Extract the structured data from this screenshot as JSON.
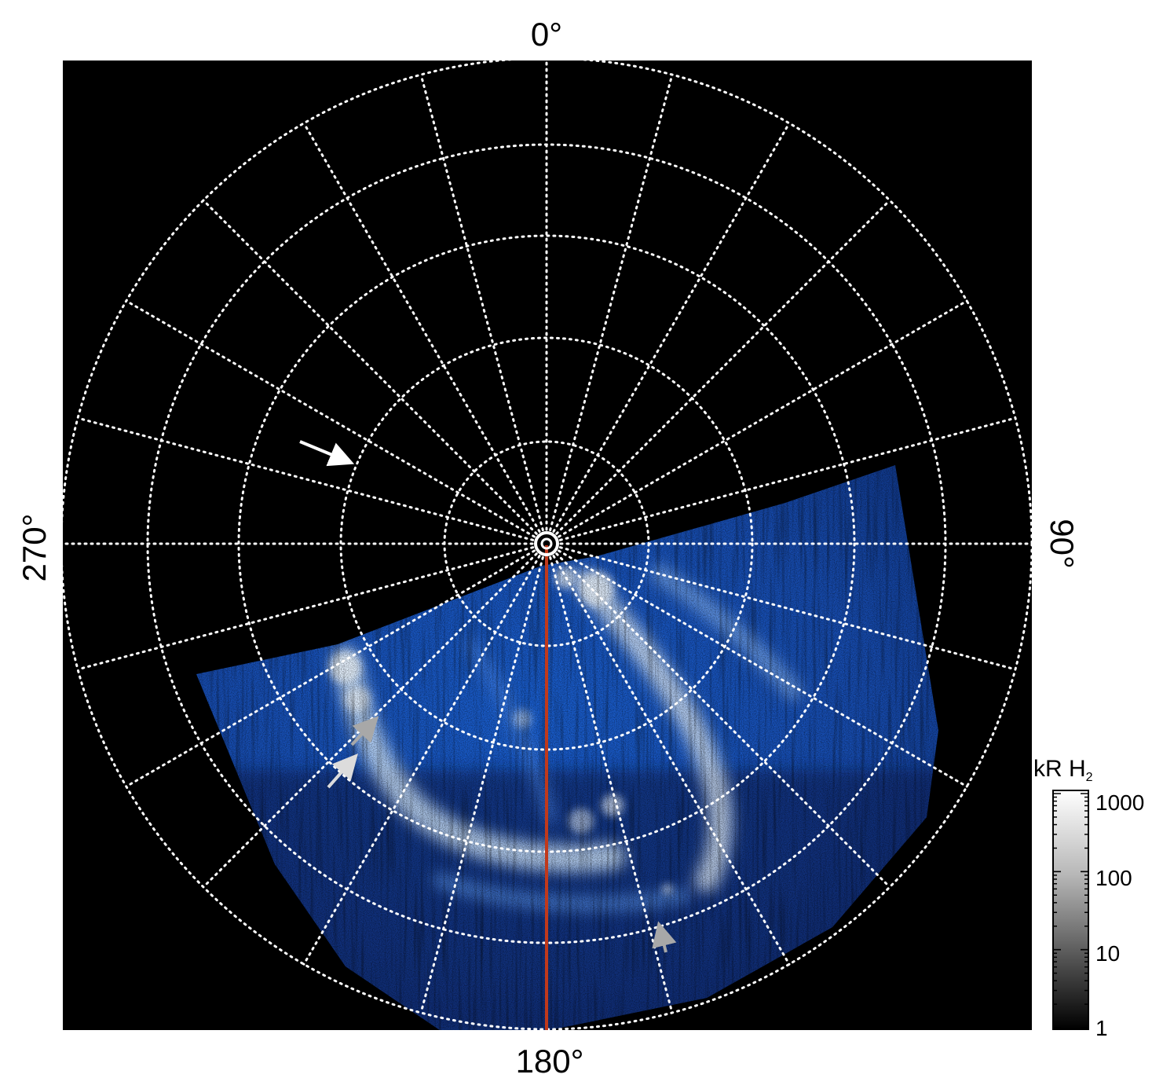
{
  "compass_labels": {
    "top": "0°",
    "right": "90°",
    "bottom": "180°",
    "left": "270°"
  },
  "colorbar": {
    "unit": "kR H",
    "unit_subscript": "2",
    "scale": "log",
    "ticks": [
      "1000",
      "100",
      "10",
      "1"
    ]
  },
  "colors": {
    "background": "#000000",
    "grid": "#ffffff",
    "meridian_line": "#c0391b",
    "aurora_dark": "#0a2a80",
    "aurora_mid": "#1e6ee6",
    "aurora_bright": "#ffffff",
    "arrow_white": "#ffffff",
    "arrow_gray": "#a8a8a8"
  },
  "grid": {
    "style": "dotted",
    "meridian_spacing_deg": 15,
    "latitude_rings": 5
  },
  "annotations": [
    {
      "name": "white-arrow",
      "color": "white"
    },
    {
      "name": "gray-arrow-1",
      "color": "gray"
    },
    {
      "name": "gray-arrow-2",
      "color": "light-gray"
    },
    {
      "name": "gray-arrow-3",
      "color": "gray"
    }
  ]
}
